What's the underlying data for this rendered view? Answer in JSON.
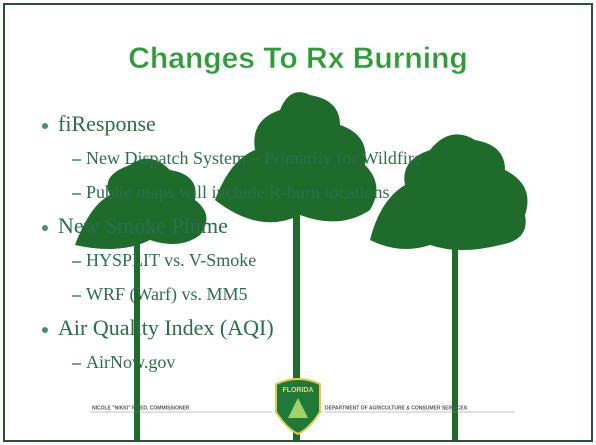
{
  "slide": {
    "title": "Changes To Rx Burning",
    "bullets": [
      {
        "text": "fiResponse",
        "sub": [
          "New Dispatch System – Primarily for Wildfire",
          "Public maps will include R-burn locations"
        ]
      },
      {
        "text": "New Smoke Plume",
        "sub": [
          "HYSPLIT  vs. V-Smoke",
          "WRF (Warf) vs. MM5"
        ]
      },
      {
        "text": "Air Quality Index (AQI)",
        "sub": [
          "AirNow.gov"
        ]
      }
    ]
  },
  "footer": {
    "left": "NICOLE \"NIKKI\" FRIED, COMMISSIONER",
    "right": "DEPARTMENT OF AGRICULTURE & CONSUMER SERVICES",
    "badge": "FLORIDA"
  }
}
